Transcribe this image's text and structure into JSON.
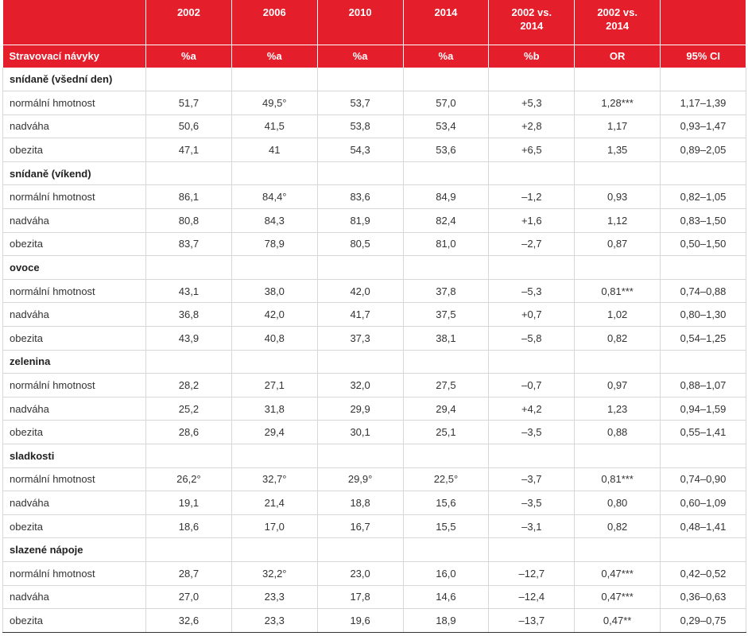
{
  "header": {
    "years": [
      "2002",
      "2006",
      "2010",
      "2014",
      "2002 vs.\n2014",
      "2002 vs.\n2014",
      ""
    ],
    "row_label": "Stravovací návyky",
    "units": [
      "%a",
      "%a",
      "%a",
      "%a",
      "%b",
      "OR",
      "95% CI"
    ]
  },
  "groups": [
    {
      "title": "snídaně (všední den)",
      "rows": [
        {
          "label": "normální hmotnost",
          "cells": [
            "51,7",
            "49,5°",
            "53,7",
            "57,0",
            "+5,3",
            "1,28***",
            "1,17–1,39"
          ]
        },
        {
          "label": "nadváha",
          "cells": [
            "50,6",
            "41,5",
            "53,8",
            "53,4",
            "+2,8",
            "1,17",
            "0,93–1,47"
          ]
        },
        {
          "label": "obezita",
          "cells": [
            "47,1",
            "41",
            "54,3",
            "53,6",
            "+6,5",
            "1,35",
            "0,89–2,05"
          ]
        }
      ]
    },
    {
      "title": "snídaně (víkend)",
      "rows": [
        {
          "label": "normální hmotnost",
          "cells": [
            "86,1",
            "84,4°",
            "83,6",
            "84,9",
            "–1,2",
            "0,93",
            "0,82–1,05"
          ]
        },
        {
          "label": "nadváha",
          "cells": [
            "80,8",
            "84,3",
            "81,9",
            "82,4",
            "+1,6",
            "1,12",
            "0,83–1,50"
          ]
        },
        {
          "label": "obezita",
          "cells": [
            "83,7",
            "78,9",
            "80,5",
            "81,0",
            "–2,7",
            "0,87",
            "0,50–1,50"
          ]
        }
      ]
    },
    {
      "title": "ovoce",
      "rows": [
        {
          "label": "normální hmotnost",
          "cells": [
            "43,1",
            "38,0",
            "42,0",
            "37,8",
            "–5,3",
            "0,81***",
            "0,74–0,88"
          ]
        },
        {
          "label": "nadváha",
          "cells": [
            "36,8",
            "42,0",
            "41,7",
            "37,5",
            "+0,7",
            "1,02",
            "0,80–1,30"
          ]
        },
        {
          "label": "obezita",
          "cells": [
            "43,9",
            "40,8",
            "37,3",
            "38,1",
            "–5,8",
            "0,82",
            "0,54–1,25"
          ]
        }
      ]
    },
    {
      "title": "zelenina",
      "rows": [
        {
          "label": "normální hmotnost",
          "cells": [
            "28,2",
            "27,1",
            "32,0",
            "27,5",
            "–0,7",
            "0,97",
            "0,88–1,07"
          ]
        },
        {
          "label": "nadváha",
          "cells": [
            "25,2",
            "31,8",
            "29,9",
            "29,4",
            "+4,2",
            "1,23",
            "0,94–1,59"
          ]
        },
        {
          "label": "obezita",
          "cells": [
            "28,6",
            "29,4",
            "30,1",
            "25,1",
            "–3,5",
            "0,88",
            "0,55–1,41"
          ]
        }
      ]
    },
    {
      "title": "sladkosti",
      "rows": [
        {
          "label": "normální hmotnost",
          "cells": [
            "26,2°",
            "32,7°",
            "29,9°",
            "22,5°",
            "–3,7",
            "0,81***",
            "0,74–0,90"
          ]
        },
        {
          "label": "nadváha",
          "cells": [
            "19,1",
            "21,4",
            "18,8",
            "15,6",
            "–3,5",
            "0,80",
            "0,60–1,09"
          ]
        },
        {
          "label": "obezita",
          "cells": [
            "18,6",
            "17,0",
            "16,7",
            "15,5",
            "–3,1",
            "0,82",
            "0,48–1,41"
          ]
        }
      ]
    },
    {
      "title": "slazené nápoje",
      "rows": [
        {
          "label": "normální hmotnost",
          "cells": [
            "28,7",
            "32,2°",
            "23,0",
            "16,0",
            "–12,7",
            "0,47***",
            "0,42–0,52"
          ]
        },
        {
          "label": "nadváha",
          "cells": [
            "27,0",
            "23,3",
            "17,8",
            "14,6",
            "–12,4",
            "0,47***",
            "0,36–0,63"
          ]
        },
        {
          "label": "obezita",
          "cells": [
            "32,6",
            "23,3",
            "19,6",
            "18,9",
            "–13,7",
            "0,47**",
            "0,29–0,75"
          ]
        }
      ]
    }
  ]
}
